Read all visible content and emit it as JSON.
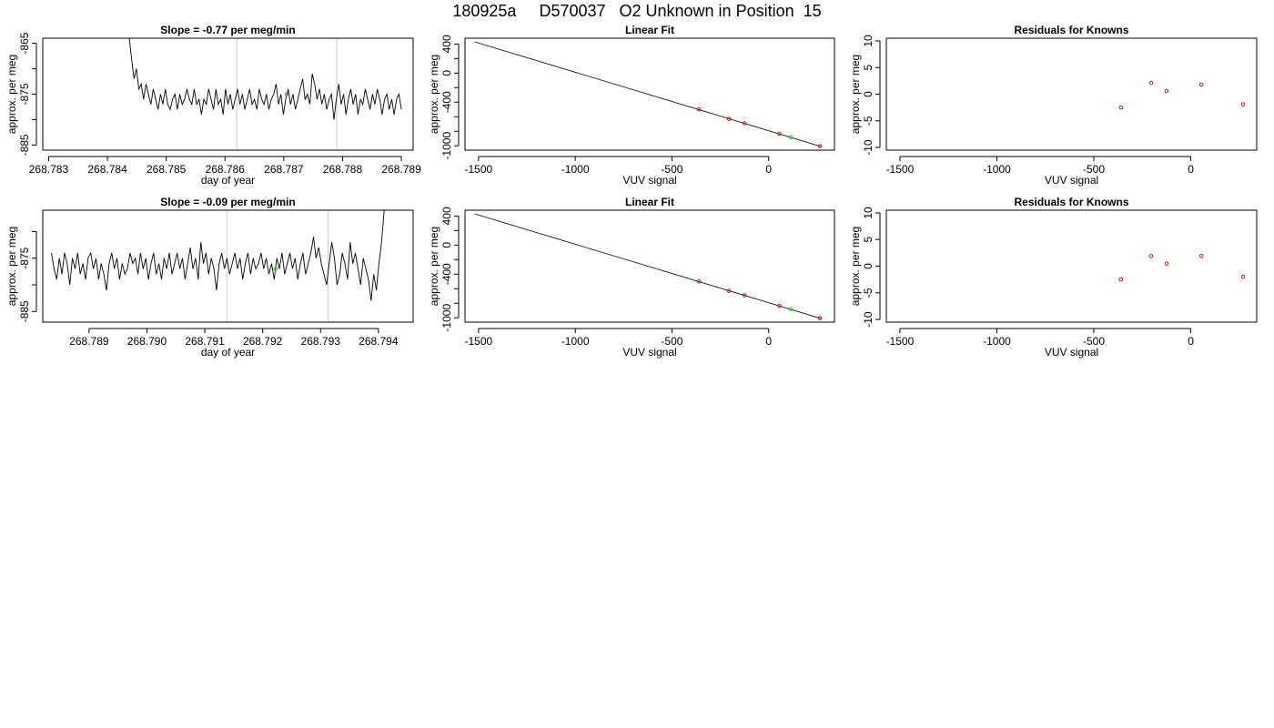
{
  "title": "180925a     D570037   O2 Unknown in Position  15",
  "chart_data": [
    {
      "id": "drift1",
      "type": "line",
      "title": "Slope =  -0.77  per meg/min",
      "xlabel": "day of year",
      "ylabel": "approx. per meg",
      "xlim": [
        268.7829,
        268.7892
      ],
      "ylim": [
        -886,
        -864
      ],
      "xticks": [
        268.783,
        268.784,
        268.785,
        268.786,
        268.787,
        268.788,
        268.789
      ],
      "xtick_labels": [
        "268.783",
        "268.784",
        "268.785",
        "268.786",
        "268.787",
        "268.788",
        "268.789"
      ],
      "yticks": [
        -865,
        -870,
        -875,
        -880,
        -885
      ],
      "ytick_labels": [
        "-865",
        "",
        "-875",
        "",
        "-885"
      ],
      "vlines": [
        268.7862,
        268.7879
      ],
      "series": [
        {
          "x_start": 268.78437,
          "x_end": 268.789,
          "values": [
            -864,
            -868,
            -872,
            -870,
            -874,
            -873,
            -876,
            -873,
            -875,
            -877,
            -874,
            -876,
            -878,
            -875,
            -877,
            -874,
            -877,
            -878,
            -876,
            -875,
            -878,
            -875,
            -877,
            -876,
            -874,
            -876,
            -877,
            -874,
            -877,
            -876,
            -879,
            -876,
            -877,
            -874,
            -876,
            -878,
            -874,
            -877,
            -876,
            -879,
            -874,
            -877,
            -875,
            -878,
            -876,
            -874,
            -877,
            -875,
            -878,
            -876,
            -874,
            -877,
            -876,
            -878,
            -874,
            -876,
            -877,
            -875,
            -878,
            -876,
            -875,
            -873,
            -877,
            -875,
            -879,
            -876,
            -874,
            -877,
            -875,
            -878,
            -876,
            -874,
            -872,
            -876,
            -875,
            -877,
            -871,
            -873,
            -876,
            -874,
            -877,
            -875,
            -878,
            -876,
            -875,
            -880,
            -876,
            -873,
            -877,
            -875,
            -879,
            -876,
            -874,
            -877,
            -875,
            -879,
            -876,
            -877,
            -874,
            -876,
            -878,
            -875,
            -877,
            -874,
            -876,
            -879,
            -876,
            -875,
            -878,
            -876,
            -879,
            -876,
            -875,
            -878
          ]
        }
      ],
      "points": [
        {
          "x": 268.78705,
          "y": -875,
          "color": "#00dd00"
        }
      ]
    },
    {
      "id": "fit1",
      "type": "line",
      "title": "Linear Fit",
      "xlabel": "VUV signal",
      "ylabel": "approx. per meg",
      "xlim": [
        -1570,
        340
      ],
      "ylim": [
        -1060,
        480
      ],
      "xticks": [
        -1500,
        -1000,
        -500,
        0
      ],
      "xtick_labels": [
        "-1500",
        "-1000",
        "-500",
        "0"
      ],
      "yticks": [
        400,
        200,
        0,
        -200,
        -400,
        -600,
        -800,
        -1000
      ],
      "ytick_labels": [
        "400",
        "",
        "0",
        "",
        "-400",
        "",
        "",
        "-1000"
      ],
      "line": [
        [
          -1520,
          430
        ],
        [
          270,
          -1010
        ]
      ],
      "points": [
        {
          "x": -360,
          "y": -500,
          "color": "#cc0000"
        },
        {
          "x": -205,
          "y": -630,
          "color": "#cc0000"
        },
        {
          "x": -125,
          "y": -690,
          "color": "#cc0000"
        },
        {
          "x": 55,
          "y": -835,
          "color": "#cc0000"
        },
        {
          "x": 115,
          "y": -880,
          "color": "#00dd00"
        },
        {
          "x": 265,
          "y": -1005,
          "color": "#cc0000"
        }
      ]
    },
    {
      "id": "resid1",
      "type": "scatter",
      "title": "Residuals for Knowns",
      "xlabel": "VUV signal",
      "ylabel": "approx. per meg",
      "xlim": [
        -1570,
        340
      ],
      "ylim": [
        -10.5,
        10.5
      ],
      "xticks": [
        -1500,
        -1000,
        -500,
        0
      ],
      "xtick_labels": [
        "-1500",
        "-1000",
        "-500",
        "0"
      ],
      "yticks": [
        10,
        5,
        0,
        -5,
        -10
      ],
      "ytick_labels": [
        "10",
        "5",
        "0",
        "-5",
        "-10"
      ],
      "points": [
        {
          "x": -360,
          "y": -2.5,
          "color": "#cc0000"
        },
        {
          "x": -205,
          "y": 2.1,
          "color": "#cc0000"
        },
        {
          "x": -125,
          "y": 0.6,
          "color": "#cc0000"
        },
        {
          "x": 55,
          "y": 1.8,
          "color": "#cc0000"
        },
        {
          "x": 270,
          "y": -1.9,
          "color": "#cc0000"
        }
      ]
    },
    {
      "id": "drift2",
      "type": "line",
      "title": "Slope =  -0.09  per meg/min",
      "xlabel": "day of year",
      "ylabel": "approx. per meg",
      "xlim": [
        268.7882,
        268.7946
      ],
      "ylim": [
        -887,
        -866
      ],
      "xticks": [
        268.789,
        268.79,
        268.791,
        268.792,
        268.793,
        268.794
      ],
      "xtick_labels": [
        "268.789",
        "268.790",
        "268.791",
        "268.792",
        "268.793",
        "268.794"
      ],
      "yticks": [
        -870,
        -875,
        -880,
        -885
      ],
      "ytick_labels": [
        "",
        "-875",
        "",
        "-885"
      ],
      "vlines": [
        268.79138,
        268.79313
      ],
      "series": [
        {
          "x_start": 268.78835,
          "x_end": 268.7941,
          "values": [
            -874,
            -877,
            -879,
            -875,
            -878,
            -874,
            -876,
            -880,
            -875,
            -877,
            -874,
            -878,
            -876,
            -879,
            -875,
            -874,
            -877,
            -875,
            -879,
            -876,
            -878,
            -881,
            -876,
            -874,
            -877,
            -875,
            -879,
            -876,
            -878,
            -877,
            -874,
            -876,
            -875,
            -878,
            -874,
            -877,
            -875,
            -879,
            -876,
            -874,
            -878,
            -876,
            -879,
            -875,
            -877,
            -874,
            -878,
            -876,
            -874,
            -877,
            -875,
            -879,
            -876,
            -873,
            -877,
            -875,
            -879,
            -872,
            -876,
            -874,
            -878,
            -875,
            -877,
            -881,
            -876,
            -874,
            -877,
            -875,
            -878,
            -876,
            -874,
            -877,
            -875,
            -879,
            -876,
            -874,
            -878,
            -875,
            -877,
            -876,
            -874,
            -877,
            -875,
            -878,
            -876,
            -879,
            -875,
            -877,
            -874,
            -878,
            -876,
            -874,
            -877,
            -875,
            -879,
            -876,
            -874,
            -878,
            -876,
            -874,
            -871,
            -875,
            -873,
            -876,
            -878,
            -880,
            -876,
            -872,
            -875,
            -880,
            -878,
            -874,
            -876,
            -879,
            -872,
            -876,
            -874,
            -877,
            -880,
            -875,
            -877,
            -879,
            -883,
            -878,
            -881,
            -876,
            -872,
            -866
          ]
        }
      ],
      "points": [
        {
          "x": 268.79222,
          "y": -877,
          "color": "#00dd00"
        }
      ]
    },
    {
      "id": "fit2",
      "type": "line",
      "title": "Linear Fit",
      "xlabel": "VUV signal",
      "ylabel": "approx. per meg",
      "xlim": [
        -1570,
        340
      ],
      "ylim": [
        -1060,
        480
      ],
      "xticks": [
        -1500,
        -1000,
        -500,
        0
      ],
      "xtick_labels": [
        "-1500",
        "-1000",
        "-500",
        "0"
      ],
      "yticks": [
        400,
        200,
        0,
        -200,
        -400,
        -600,
        -800,
        -1000
      ],
      "ytick_labels": [
        "400",
        "",
        "0",
        "",
        "-400",
        "",
        "",
        "-1000"
      ],
      "line": [
        [
          -1520,
          430
        ],
        [
          270,
          -1010
        ]
      ],
      "points": [
        {
          "x": -360,
          "y": -500,
          "color": "#cc0000"
        },
        {
          "x": -205,
          "y": -630,
          "color": "#cc0000"
        },
        {
          "x": -125,
          "y": -690,
          "color": "#cc0000"
        },
        {
          "x": 55,
          "y": -835,
          "color": "#cc0000"
        },
        {
          "x": 115,
          "y": -880,
          "color": "#00dd00"
        },
        {
          "x": 265,
          "y": -1005,
          "color": "#cc0000"
        }
      ]
    },
    {
      "id": "resid2",
      "type": "scatter",
      "title": "Residuals for Knowns",
      "xlabel": "VUV signal",
      "ylabel": "approx. per meg",
      "xlim": [
        -1570,
        340
      ],
      "ylim": [
        -10.5,
        10.5
      ],
      "xticks": [
        -1500,
        -1000,
        -500,
        0
      ],
      "xtick_labels": [
        "-1500",
        "-1000",
        "-500",
        "0"
      ],
      "yticks": [
        10,
        5,
        0,
        -5,
        -10
      ],
      "ytick_labels": [
        "10",
        "5",
        "0",
        "-5",
        "-10"
      ],
      "points": [
        {
          "x": -360,
          "y": -2.5,
          "color": "#cc0000"
        },
        {
          "x": -205,
          "y": 1.9,
          "color": "#cc0000"
        },
        {
          "x": -125,
          "y": 0.5,
          "color": "#cc0000"
        },
        {
          "x": 55,
          "y": 1.9,
          "color": "#cc0000"
        },
        {
          "x": 270,
          "y": -2.0,
          "color": "#cc0000"
        }
      ]
    }
  ]
}
